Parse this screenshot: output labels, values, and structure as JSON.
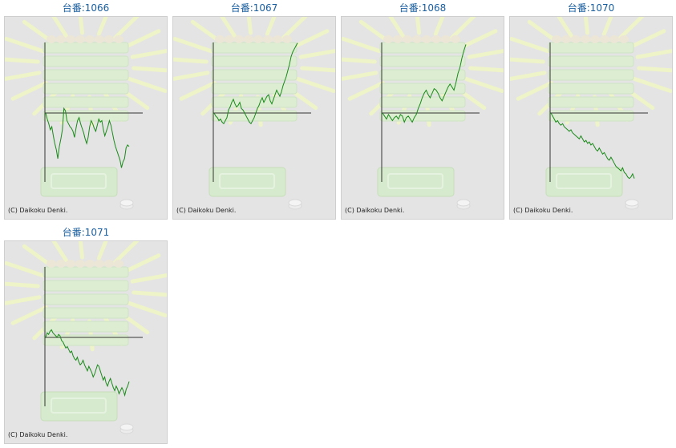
{
  "colors": {
    "title_link": "#1a5fa0",
    "graph_line": "#1a8a1a",
    "axis": "#333333",
    "panel_bg": "#e4e4e4"
  },
  "machines": [
    {
      "title": "台番:1066",
      "copyright": "(C) Daikoku Denki.",
      "trend": [
        0,
        -8,
        -14,
        -22,
        -18,
        -30,
        -40,
        -48,
        -60,
        -44,
        -34,
        -22,
        6,
        3,
        -10,
        -14,
        -18,
        -20,
        -24,
        -32,
        -20,
        -10,
        -6,
        -14,
        -20,
        -26,
        -34,
        -40,
        -32,
        -18,
        -10,
        -14,
        -20,
        -24,
        -16,
        -8,
        -12,
        -10,
        -22,
        -30,
        -24,
        -18,
        -10,
        -16,
        -26,
        -36,
        -44,
        -50,
        -56,
        -62,
        -72,
        -64,
        -60,
        -46,
        -42,
        -44
      ]
    },
    {
      "title": "台番:1067",
      "copyright": "(C) Daikoku Denki.",
      "trend": [
        0,
        -4,
        -6,
        -10,
        -8,
        -12,
        -14,
        -10,
        -6,
        4,
        8,
        14,
        18,
        12,
        8,
        10,
        14,
        6,
        4,
        0,
        -4,
        -8,
        -12,
        -14,
        -10,
        -6,
        0,
        6,
        10,
        16,
        20,
        14,
        18,
        22,
        24,
        16,
        12,
        18,
        24,
        30,
        26,
        22,
        28,
        36,
        42,
        48,
        56,
        64,
        74,
        80,
        84,
        88,
        92
      ]
    },
    {
      "title": "台番:1068",
      "copyright": "(C) Daikoku Denki.",
      "trend": [
        0,
        -4,
        -8,
        -2,
        -6,
        -10,
        -6,
        -4,
        -8,
        -2,
        -4,
        -12,
        -6,
        -4,
        -8,
        -12,
        -6,
        -2,
        6,
        12,
        20,
        26,
        30,
        24,
        20,
        26,
        32,
        30,
        26,
        20,
        16,
        22,
        28,
        34,
        38,
        34,
        30,
        40,
        52,
        60,
        72,
        82,
        90
      ]
    },
    {
      "title": "台番:1070",
      "copyright": "(C) Daikoku Denki.",
      "trend": [
        0,
        -4,
        -8,
        -12,
        -10,
        -14,
        -16,
        -14,
        -18,
        -20,
        -22,
        -24,
        -22,
        -26,
        -28,
        -30,
        -32,
        -34,
        -30,
        -34,
        -38,
        -36,
        -40,
        -38,
        -42,
        -40,
        -44,
        -48,
        -50,
        -46,
        -50,
        -54,
        -52,
        -56,
        -60,
        -62,
        -58,
        -62,
        -66,
        -70,
        -72,
        -74,
        -76,
        -72,
        -78,
        -80,
        -84,
        -86,
        -84,
        -80,
        -86
      ]
    },
    {
      "title": "台番:1071",
      "copyright": "(C) Daikoku Denki.",
      "trend": [
        0,
        6,
        4,
        8,
        10,
        6,
        4,
        2,
        0,
        4,
        2,
        -4,
        -6,
        -10,
        -14,
        -12,
        -16,
        -20,
        -18,
        -24,
        -28,
        -30,
        -26,
        -32,
        -36,
        -34,
        -30,
        -36,
        -40,
        -44,
        -38,
        -42,
        -46,
        -52,
        -48,
        -42,
        -36,
        -38,
        -44,
        -50,
        -56,
        -52,
        -60,
        -64,
        -58,
        -54,
        -60,
        -66,
        -70,
        -64,
        -68,
        -74,
        -70,
        -66,
        -70,
        -76,
        -68,
        -64,
        -58
      ]
    }
  ]
}
